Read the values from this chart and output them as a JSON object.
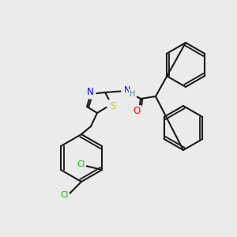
{
  "background_color": "#ebebeb",
  "bond_color": "#1a1a1a",
  "bond_width": 1.5,
  "atom_colors": {
    "N": "#0000ff",
    "O": "#ff0000",
    "S": "#cccc00",
    "Cl": "#00bb00",
    "C": "#1a1a1a",
    "H": "#4a8a8a"
  },
  "font_size": 7.5,
  "bg": "#ebebeb"
}
